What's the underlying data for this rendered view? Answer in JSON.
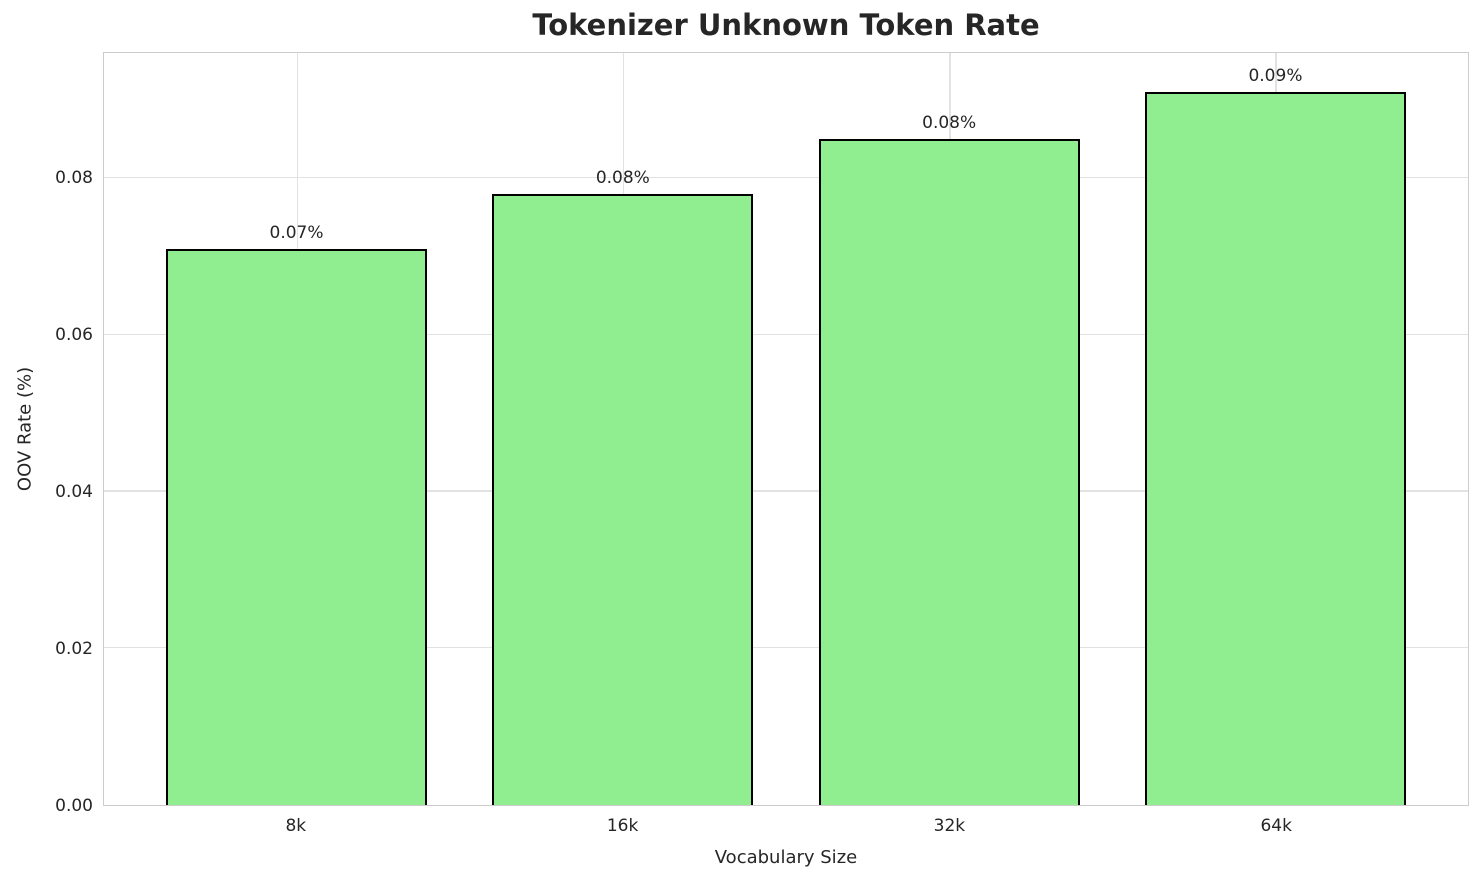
{
  "chart_data": {
    "type": "bar",
    "title": "Tokenizer Unknown Token Rate",
    "xlabel": "Vocabulary Size",
    "ylabel": "OOV Rate (%)",
    "categories": [
      "8k",
      "16k",
      "32k",
      "64k"
    ],
    "values": [
      0.071,
      0.078,
      0.085,
      0.091
    ],
    "bar_labels": [
      "0.07%",
      "0.08%",
      "0.08%",
      "0.09%"
    ],
    "ytick_values": [
      0.0,
      0.02,
      0.04,
      0.06,
      0.08
    ],
    "ytick_labels": [
      "0.00",
      "0.02",
      "0.04",
      "0.06",
      "0.08"
    ],
    "ylim": [
      0,
      0.096
    ],
    "grid": true,
    "legend": null,
    "bar_color": "#90EE90",
    "bar_edge_color": "#000000",
    "grid_color": "#e2e2e2",
    "spine_color": "#cccccc",
    "text_color": "#262626"
  }
}
